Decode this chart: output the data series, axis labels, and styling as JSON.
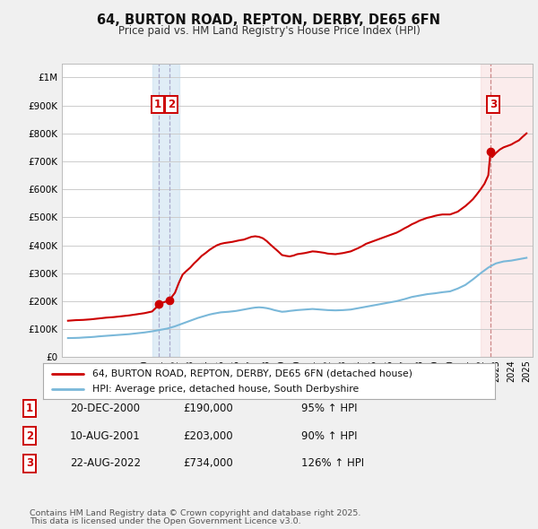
{
  "title": "64, BURTON ROAD, REPTON, DERBY, DE65 6FN",
  "subtitle": "Price paid vs. HM Land Registry's House Price Index (HPI)",
  "legend_line1": "64, BURTON ROAD, REPTON, DERBY, DE65 6FN (detached house)",
  "legend_line2": "HPI: Average price, detached house, South Derbyshire",
  "transactions": [
    {
      "num": 1,
      "date": "20-DEC-2000",
      "price": 190000,
      "pct": "95%",
      "dir": "↑",
      "year": 2000.96
    },
    {
      "num": 2,
      "date": "10-AUG-2001",
      "price": 203000,
      "pct": "90%",
      "dir": "↑",
      "year": 2001.62
    },
    {
      "num": 3,
      "date": "22-AUG-2022",
      "price": 734000,
      "pct": "126%",
      "dir": "↑",
      "year": 2022.64
    }
  ],
  "footer1": "Contains HM Land Registry data © Crown copyright and database right 2025.",
  "footer2": "This data is licensed under the Open Government Licence v3.0.",
  "hpi_color": "#7ab8d9",
  "price_color": "#cc0000",
  "bg_color": "#f0f0f0",
  "plot_bg": "#ffffff",
  "grid_color": "#cccccc",
  "shade1_color": "#c8dff0",
  "shade2_color": "#f5d0d0",
  "ylim_max": 1050000,
  "xlim_min": 1994.6,
  "xlim_max": 2025.4,
  "hpi_data": [
    [
      1995.0,
      68000
    ],
    [
      1995.25,
      68200
    ],
    [
      1995.5,
      68500
    ],
    [
      1995.75,
      69000
    ],
    [
      1996.0,
      70000
    ],
    [
      1996.25,
      70800
    ],
    [
      1996.5,
      71500
    ],
    [
      1996.75,
      72500
    ],
    [
      1997.0,
      74000
    ],
    [
      1997.25,
      75000
    ],
    [
      1997.5,
      76000
    ],
    [
      1997.75,
      77000
    ],
    [
      1998.0,
      78000
    ],
    [
      1998.25,
      79000
    ],
    [
      1998.5,
      80000
    ],
    [
      1998.75,
      81000
    ],
    [
      1999.0,
      82000
    ],
    [
      1999.25,
      83500
    ],
    [
      1999.5,
      85000
    ],
    [
      1999.75,
      86500
    ],
    [
      2000.0,
      88000
    ],
    [
      2000.25,
      90000
    ],
    [
      2000.5,
      92000
    ],
    [
      2000.75,
      94500
    ],
    [
      2001.0,
      97000
    ],
    [
      2001.25,
      99500
    ],
    [
      2001.5,
      102000
    ],
    [
      2001.75,
      106000
    ],
    [
      2002.0,
      110000
    ],
    [
      2002.25,
      115000
    ],
    [
      2002.5,
      120000
    ],
    [
      2002.75,
      125000
    ],
    [
      2003.0,
      130000
    ],
    [
      2003.25,
      135000
    ],
    [
      2003.5,
      140000
    ],
    [
      2003.75,
      144000
    ],
    [
      2004.0,
      148000
    ],
    [
      2004.25,
      152000
    ],
    [
      2004.5,
      155000
    ],
    [
      2004.75,
      157500
    ],
    [
      2005.0,
      160000
    ],
    [
      2005.25,
      161000
    ],
    [
      2005.5,
      162000
    ],
    [
      2005.75,
      163500
    ],
    [
      2006.0,
      165000
    ],
    [
      2006.25,
      167500
    ],
    [
      2006.5,
      170000
    ],
    [
      2006.75,
      172500
    ],
    [
      2007.0,
      175000
    ],
    [
      2007.25,
      177000
    ],
    [
      2007.5,
      178000
    ],
    [
      2007.75,
      177000
    ],
    [
      2008.0,
      175000
    ],
    [
      2008.25,
      172000
    ],
    [
      2008.5,
      168000
    ],
    [
      2008.75,
      165000
    ],
    [
      2009.0,
      162000
    ],
    [
      2009.25,
      163000
    ],
    [
      2009.5,
      165000
    ],
    [
      2009.75,
      166500
    ],
    [
      2010.0,
      168000
    ],
    [
      2010.25,
      169000
    ],
    [
      2010.5,
      170000
    ],
    [
      2010.75,
      171000
    ],
    [
      2011.0,
      172000
    ],
    [
      2011.25,
      171000
    ],
    [
      2011.5,
      170000
    ],
    [
      2011.75,
      169000
    ],
    [
      2012.0,
      168000
    ],
    [
      2012.25,
      167500
    ],
    [
      2012.5,
      167000
    ],
    [
      2012.75,
      167500
    ],
    [
      2013.0,
      168000
    ],
    [
      2013.25,
      169000
    ],
    [
      2013.5,
      170000
    ],
    [
      2013.75,
      172500
    ],
    [
      2014.0,
      175000
    ],
    [
      2014.25,
      177500
    ],
    [
      2014.5,
      180000
    ],
    [
      2014.75,
      182500
    ],
    [
      2015.0,
      185000
    ],
    [
      2015.25,
      187500
    ],
    [
      2015.5,
      190000
    ],
    [
      2015.75,
      192500
    ],
    [
      2016.0,
      195000
    ],
    [
      2016.25,
      197500
    ],
    [
      2016.5,
      200000
    ],
    [
      2016.75,
      203500
    ],
    [
      2017.0,
      207000
    ],
    [
      2017.25,
      211000
    ],
    [
      2017.5,
      215000
    ],
    [
      2017.75,
      217500
    ],
    [
      2018.0,
      220000
    ],
    [
      2018.25,
      222500
    ],
    [
      2018.5,
      225000
    ],
    [
      2018.75,
      226500
    ],
    [
      2019.0,
      228000
    ],
    [
      2019.25,
      230000
    ],
    [
      2019.5,
      232000
    ],
    [
      2019.75,
      233500
    ],
    [
      2020.0,
      235000
    ],
    [
      2020.25,
      240000
    ],
    [
      2020.5,
      245000
    ],
    [
      2020.75,
      251500
    ],
    [
      2021.0,
      258000
    ],
    [
      2021.25,
      268000
    ],
    [
      2021.5,
      278000
    ],
    [
      2021.75,
      289000
    ],
    [
      2022.0,
      300000
    ],
    [
      2022.25,
      310000
    ],
    [
      2022.5,
      320000
    ],
    [
      2022.75,
      328000
    ],
    [
      2023.0,
      335000
    ],
    [
      2023.25,
      338500
    ],
    [
      2023.5,
      342000
    ],
    [
      2023.75,
      343500
    ],
    [
      2024.0,
      345000
    ],
    [
      2024.25,
      347500
    ],
    [
      2024.5,
      350000
    ],
    [
      2024.75,
      352500
    ],
    [
      2025.0,
      355000
    ]
  ],
  "price_data": [
    [
      1995.0,
      130000
    ],
    [
      1995.25,
      131000
    ],
    [
      1995.5,
      132000
    ],
    [
      1995.75,
      132500
    ],
    [
      1996.0,
      133000
    ],
    [
      1996.25,
      134000
    ],
    [
      1996.5,
      135000
    ],
    [
      1996.75,
      136500
    ],
    [
      1997.0,
      138000
    ],
    [
      1997.25,
      139500
    ],
    [
      1997.5,
      141000
    ],
    [
      1997.75,
      142000
    ],
    [
      1998.0,
      143000
    ],
    [
      1998.25,
      144500
    ],
    [
      1998.5,
      146000
    ],
    [
      1998.75,
      147500
    ],
    [
      1999.0,
      149000
    ],
    [
      1999.25,
      151000
    ],
    [
      1999.5,
      153000
    ],
    [
      1999.75,
      155000
    ],
    [
      2000.0,
      157000
    ],
    [
      2000.25,
      160000
    ],
    [
      2000.5,
      163000
    ],
    [
      2000.75,
      176000
    ],
    [
      2000.96,
      190000
    ],
    [
      2001.0,
      192000
    ],
    [
      2001.5,
      200000
    ],
    [
      2001.62,
      203000
    ],
    [
      2002.0,
      230000
    ],
    [
      2002.25,
      265000
    ],
    [
      2002.5,
      295000
    ],
    [
      2002.75,
      308000
    ],
    [
      2003.0,
      320000
    ],
    [
      2003.25,
      335000
    ],
    [
      2003.5,
      348000
    ],
    [
      2003.75,
      362000
    ],
    [
      2004.0,
      372000
    ],
    [
      2004.25,
      383000
    ],
    [
      2004.5,
      392000
    ],
    [
      2004.75,
      400000
    ],
    [
      2005.0,
      405000
    ],
    [
      2005.25,
      408000
    ],
    [
      2005.5,
      410000
    ],
    [
      2005.75,
      412000
    ],
    [
      2006.0,
      415000
    ],
    [
      2006.25,
      418000
    ],
    [
      2006.5,
      420000
    ],
    [
      2006.75,
      425000
    ],
    [
      2007.0,
      430000
    ],
    [
      2007.25,
      432000
    ],
    [
      2007.5,
      430000
    ],
    [
      2007.75,
      425000
    ],
    [
      2008.0,
      415000
    ],
    [
      2008.25,
      402000
    ],
    [
      2008.5,
      390000
    ],
    [
      2008.75,
      378000
    ],
    [
      2009.0,
      365000
    ],
    [
      2009.25,
      362000
    ],
    [
      2009.5,
      360000
    ],
    [
      2009.75,
      363000
    ],
    [
      2010.0,
      368000
    ],
    [
      2010.25,
      370000
    ],
    [
      2010.5,
      372000
    ],
    [
      2010.75,
      375000
    ],
    [
      2011.0,
      378000
    ],
    [
      2011.25,
      377000
    ],
    [
      2011.5,
      375000
    ],
    [
      2011.75,
      373000
    ],
    [
      2012.0,
      370000
    ],
    [
      2012.25,
      369000
    ],
    [
      2012.5,
      368000
    ],
    [
      2012.75,
      370000
    ],
    [
      2013.0,
      372000
    ],
    [
      2013.25,
      375000
    ],
    [
      2013.5,
      378000
    ],
    [
      2013.75,
      384000
    ],
    [
      2014.0,
      390000
    ],
    [
      2014.25,
      397000
    ],
    [
      2014.5,
      405000
    ],
    [
      2014.75,
      410000
    ],
    [
      2015.0,
      415000
    ],
    [
      2015.25,
      420000
    ],
    [
      2015.5,
      425000
    ],
    [
      2015.75,
      430000
    ],
    [
      2016.0,
      435000
    ],
    [
      2016.25,
      440000
    ],
    [
      2016.5,
      445000
    ],
    [
      2016.75,
      452000
    ],
    [
      2017.0,
      460000
    ],
    [
      2017.25,
      467000
    ],
    [
      2017.5,
      475000
    ],
    [
      2017.75,
      481000
    ],
    [
      2018.0,
      488000
    ],
    [
      2018.25,
      493000
    ],
    [
      2018.5,
      498000
    ],
    [
      2018.75,
      501000
    ],
    [
      2019.0,
      505000
    ],
    [
      2019.25,
      508000
    ],
    [
      2019.5,
      510000
    ],
    [
      2019.75,
      510000
    ],
    [
      2020.0,
      510000
    ],
    [
      2020.25,
      515000
    ],
    [
      2020.5,
      520000
    ],
    [
      2020.75,
      530000
    ],
    [
      2021.0,
      540000
    ],
    [
      2021.25,
      552000
    ],
    [
      2021.5,
      565000
    ],
    [
      2021.75,
      582000
    ],
    [
      2022.0,
      600000
    ],
    [
      2022.25,
      620000
    ],
    [
      2022.5,
      650000
    ],
    [
      2022.64,
      734000
    ],
    [
      2022.75,
      715000
    ],
    [
      2023.0,
      730000
    ],
    [
      2023.25,
      742000
    ],
    [
      2023.5,
      750000
    ],
    [
      2023.75,
      755000
    ],
    [
      2024.0,
      760000
    ],
    [
      2024.25,
      768000
    ],
    [
      2024.5,
      775000
    ],
    [
      2024.75,
      788000
    ],
    [
      2025.0,
      800000
    ]
  ]
}
